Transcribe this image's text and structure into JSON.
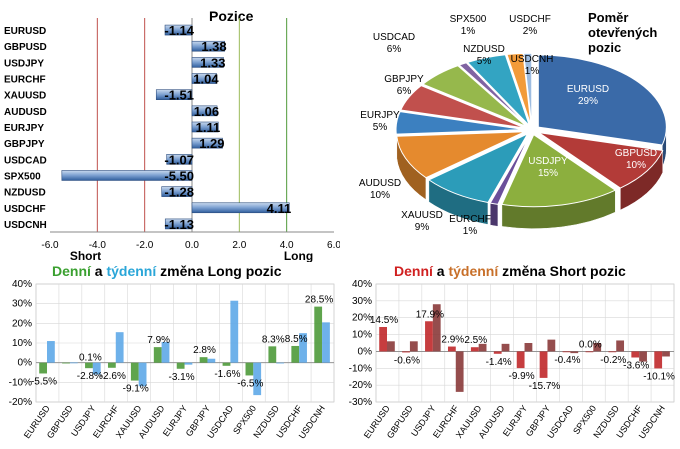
{
  "chart_data": [
    {
      "id": "positions",
      "type": "bar",
      "orientation": "horizontal",
      "title": "Pozice",
      "categories": [
        "EURUSD",
        "GBPUSD",
        "USDJPY",
        "EURCHF",
        "XAUUSD",
        "AUDUSD",
        "EURJPY",
        "GBPJPY",
        "USDCAD",
        "SPX500",
        "NZDUSD",
        "USDCHF",
        "USDCNH"
      ],
      "values": [
        -1.14,
        1.38,
        1.33,
        1.04,
        -1.51,
        1.06,
        1.11,
        1.29,
        -1.07,
        -5.5,
        -1.28,
        4.11,
        -1.13
      ],
      "value_labels": [
        "-1.14",
        "1.38",
        "1.33",
        "1.04",
        "-1.51",
        "1.06",
        "1.11",
        "1.29",
        "-1.07",
        "-5.50",
        "-1.28",
        "4.11",
        "-1.13"
      ],
      "xlim": [
        -6.0,
        6.0
      ],
      "x_ticks": [
        "-6.0",
        "-4.0",
        "-2.0",
        "0.0",
        "2.0",
        "4.0",
        "6.0"
      ],
      "annotations": {
        "short": "Short",
        "long": "Long"
      },
      "reference_lines": [
        {
          "x": -4,
          "color": "#c0504d"
        },
        {
          "x": -2,
          "color": "#c0504d"
        },
        {
          "x": 2,
          "color": "#9bbb59"
        },
        {
          "x": 4,
          "color": "#4f9a3a"
        }
      ],
      "bar_color": "#4a78b5",
      "grid": false
    },
    {
      "id": "ratio",
      "type": "pie",
      "title": "Poměr otevřených pozic",
      "title_lines": [
        "Poměr",
        "otevřených",
        "pozic"
      ],
      "slices": [
        {
          "label": "EURUSD",
          "value": 29,
          "value_label": "29%",
          "color": "#3a6aa8"
        },
        {
          "label": "GBPUSD",
          "value": 10,
          "value_label": "10%",
          "color": "#b33b38"
        },
        {
          "label": "USDJPY",
          "value": 15,
          "value_label": "15%",
          "color": "#8caf3e"
        },
        {
          "label": "EURCHF",
          "value": 1,
          "value_label": "1%",
          "color": "#6b4f9a"
        },
        {
          "label": "XAUUSD",
          "value": 9,
          "value_label": "9%",
          "color": "#2c9cb9"
        },
        {
          "label": "AUDUSD",
          "value": 10,
          "value_label": "10%",
          "color": "#e58a2e"
        },
        {
          "label": "EURJPY",
          "value": 5,
          "value_label": "5%",
          "color": "#3c80c0"
        },
        {
          "label": "GBPJPY",
          "value": 6,
          "value_label": "6%",
          "color": "#c1504d"
        },
        {
          "label": "USDCAD",
          "value": 6,
          "value_label": "6%",
          "color": "#96b84c"
        },
        {
          "label": "SPX500",
          "value": 1,
          "value_label": "1%",
          "color": "#8064a2"
        },
        {
          "label": "NZDUSD",
          "value": 5,
          "value_label": "5%",
          "color": "#33a4c2"
        },
        {
          "label": "USDCHF",
          "value": 2,
          "value_label": "2%",
          "color": "#f29b3a"
        },
        {
          "label": "USDCNH",
          "value": 1,
          "value_label": "1%",
          "color": "#9dbce0"
        }
      ]
    },
    {
      "id": "long_change",
      "type": "bar",
      "title_parts": [
        "Denní",
        " a ",
        "týdenní",
        " změna Long pozic"
      ],
      "title_colors": [
        "#3aa030",
        "#000000",
        "#2aa6d8",
        "#000000"
      ],
      "categories": [
        "EURUSD",
        "GBPUSD",
        "USDJPY",
        "EURCHF",
        "XAUUSD",
        "AUDUSD",
        "EURJPY",
        "GBPJPY",
        "USDCAD",
        "SPX500",
        "NZDUSD",
        "USDCHF",
        "USDCNH"
      ],
      "series": [
        {
          "name": "Denní",
          "color": "#4e9a3a",
          "values": [
            -5.5,
            0.0,
            -2.8,
            -2.6,
            -9.1,
            7.9,
            -3.1,
            2.8,
            -1.6,
            -6.5,
            8.3,
            8.5,
            28.5
          ]
        },
        {
          "name": "Týdenní",
          "color": "#5ea8e8",
          "values": [
            11.0,
            0.1,
            -6.0,
            15.5,
            -12.0,
            10.5,
            -1.0,
            2.0,
            31.5,
            -16.5,
            0.0,
            15.0,
            20.5
          ]
        }
      ],
      "data_labels": [
        {
          "text": "-5.5%",
          "cat": 0,
          "value": -5.5,
          "pos": "below"
        },
        {
          "text": "0.1%",
          "cat": 1,
          "value": 0.1,
          "pos": "right"
        },
        {
          "text": "-2.8%",
          "cat": 2,
          "value": -2.8,
          "pos": "below"
        },
        {
          "text": "-2.6%",
          "cat": 3,
          "value": -2.6,
          "pos": "below"
        },
        {
          "text": "-9.1%",
          "cat": 4,
          "value": -9.1,
          "pos": "below"
        },
        {
          "text": "7.9%",
          "cat": 5,
          "value": 7.9,
          "pos": "above"
        },
        {
          "text": "-3.1%",
          "cat": 6,
          "value": -3.1,
          "pos": "below"
        },
        {
          "text": "2.8%",
          "cat": 7,
          "value": 2.8,
          "pos": "above"
        },
        {
          "text": "-1.6%",
          "cat": 8,
          "value": -1.6,
          "pos": "below"
        },
        {
          "text": "-6.5%",
          "cat": 9,
          "value": -6.5,
          "pos": "below"
        },
        {
          "text": "8.3%",
          "cat": 10,
          "value": 8.3,
          "pos": "above"
        },
        {
          "text": "8.5%",
          "cat": 11,
          "value": 8.5,
          "pos": "above"
        },
        {
          "text": "28.5%",
          "cat": 12,
          "value": 28.5,
          "pos": "above"
        }
      ],
      "ylim": [
        -20,
        40
      ],
      "y_ticks": [
        "-20%",
        "-10%",
        "0%",
        "10%",
        "20%",
        "30%",
        "40%"
      ],
      "grid": true
    },
    {
      "id": "short_change",
      "type": "bar",
      "title_parts": [
        "Denní",
        " a ",
        "týdenní",
        " změna Short pozic"
      ],
      "title_colors": [
        "#d02020",
        "#000000",
        "#c8702a",
        "#000000"
      ],
      "categories": [
        "EURUSD",
        "GBPUSD",
        "USDJPY",
        "EURCHF",
        "XAUUSD",
        "AUDUSD",
        "EURJPY",
        "GBPJPY",
        "USDCAD",
        "SPX500",
        "NZDUSD",
        "USDCHF",
        "USDCNH"
      ],
      "series": [
        {
          "name": "Denní",
          "color": "#c0282a",
          "values": [
            14.5,
            -0.6,
            17.9,
            2.9,
            2.5,
            -1.4,
            -9.9,
            -15.7,
            -0.4,
            0.0,
            -0.2,
            -3.6,
            -10.1
          ]
        },
        {
          "name": "Týdenní",
          "color": "#8a3a3a",
          "values": [
            6.0,
            6.0,
            28.0,
            -24.0,
            4.5,
            4.5,
            5.0,
            7.0,
            -1.0,
            5.0,
            6.5,
            -6.0,
            -3.0
          ]
        }
      ],
      "data_labels": [
        {
          "text": "14.5%",
          "cat": 0,
          "value": 14.5,
          "pos": "above"
        },
        {
          "text": "-0.6%",
          "cat": 1,
          "value": -0.6,
          "pos": "below"
        },
        {
          "text": "17.9%",
          "cat": 2,
          "value": 17.9,
          "pos": "above"
        },
        {
          "text": "2.9%",
          "cat": 3,
          "value": 2.9,
          "pos": "above"
        },
        {
          "text": "2.5%",
          "cat": 4,
          "value": 2.5,
          "pos": "above"
        },
        {
          "text": "-1.4%",
          "cat": 5,
          "value": -1.4,
          "pos": "below"
        },
        {
          "text": "-9.9%",
          "cat": 6,
          "value": -9.9,
          "pos": "below"
        },
        {
          "text": "-15.7%",
          "cat": 7,
          "value": -15.7,
          "pos": "below"
        },
        {
          "text": "-0.4%",
          "cat": 8,
          "value": -0.4,
          "pos": "below"
        },
        {
          "text": "0.0%",
          "cat": 9,
          "value": 0.0,
          "pos": "above"
        },
        {
          "text": "-0.2%",
          "cat": 10,
          "value": -0.2,
          "pos": "below"
        },
        {
          "text": "-3.6%",
          "cat": 11,
          "value": -3.6,
          "pos": "below"
        },
        {
          "text": "-10.1%",
          "cat": 12,
          "value": -10.1,
          "pos": "below"
        }
      ],
      "ylim": [
        -30,
        40
      ],
      "y_ticks": [
        "-30%",
        "-20%",
        "-10%",
        "0%",
        "10%",
        "20%",
        "30%",
        "40%"
      ],
      "grid": true
    }
  ]
}
